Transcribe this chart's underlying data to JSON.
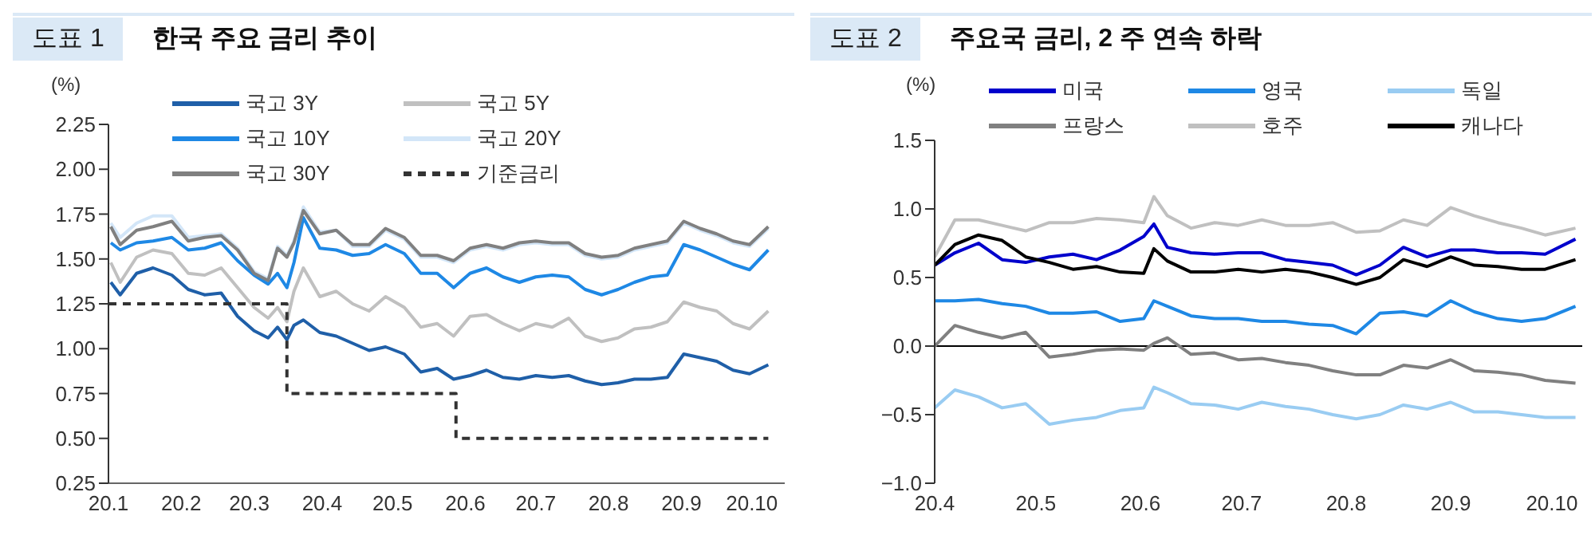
{
  "chart_data": [
    {
      "type": "line",
      "annotations": [
        "도표 1"
      ],
      "title": "한국 주요 금리 추이",
      "ylabel": "(%)",
      "legend": "top",
      "grid": false,
      "marker": "none",
      "x": [
        "--01-02",
        "--01-06",
        "--01-13",
        "--01-20",
        "--01-28",
        "--02-04",
        "--02-11",
        "--02-18",
        "--02-25",
        "--03-03",
        "--03-09",
        "--03-13",
        "--03-17",
        "--03-20",
        "--03-24",
        "--03-31",
        "--04-07",
        "--04-14",
        "--04-21",
        "--04-28",
        "--05-06",
        "--05-13",
        "--05-20",
        "--05-27",
        "--06-03",
        "--06-10",
        "--06-17",
        "--06-24",
        "--07-01",
        "--07-08",
        "--07-15",
        "--07-22",
        "--07-29",
        "--08-05",
        "--08-12",
        "--08-19",
        "--08-26",
        "--09-02",
        "--09-09",
        "--09-16",
        "--09-23",
        "--09-30",
        "--10-08"
      ],
      "xlim": [
        "--01-01",
        "--10-15"
      ],
      "xticks": [
        {
          "value": "--01-01",
          "label": "20.1"
        },
        {
          "value": "--02-01",
          "label": "20.2"
        },
        {
          "value": "--03-01",
          "label": "20.3"
        },
        {
          "value": "--04-01",
          "label": "20.4"
        },
        {
          "value": "--05-01",
          "label": "20.5"
        },
        {
          "value": "--06-01",
          "label": "20.6"
        },
        {
          "value": "--07-01",
          "label": "20.7"
        },
        {
          "value": "--08-01",
          "label": "20.8"
        },
        {
          "value": "--09-01",
          "label": "20.9"
        },
        {
          "value": "--10-01",
          "label": "20.10"
        }
      ],
      "ylim": [
        0.25,
        2.25
      ],
      "yticks": [
        0.25,
        {
          "value": 0.5,
          "label": "0.50"
        },
        0.75,
        {
          "value": 1,
          "label": "1.00"
        },
        1.25,
        {
          "value": 1.5,
          "label": "1.50"
        },
        1.75,
        {
          "value": 2,
          "label": "2.00"
        },
        2.25
      ],
      "series": [
        {
          "name": "국고 3Y",
          "color": "#1f5fa8",
          "values": [
            1.37,
            1.3,
            1.42,
            1.45,
            1.41,
            1.33,
            1.3,
            1.31,
            1.18,
            1.1,
            1.06,
            1.12,
            1.05,
            1.13,
            1.16,
            1.09,
            1.07,
            1.03,
            0.99,
            1.01,
            0.97,
            0.87,
            0.89,
            0.83,
            0.85,
            0.88,
            0.84,
            0.83,
            0.85,
            0.84,
            0.85,
            0.82,
            0.8,
            0.81,
            0.83,
            0.83,
            0.84,
            0.97,
            0.95,
            0.93,
            0.88,
            0.86,
            0.91
          ]
        },
        {
          "name": "국고 5Y",
          "color": "#c0c0c0",
          "values": [
            1.48,
            1.37,
            1.51,
            1.55,
            1.53,
            1.42,
            1.41,
            1.45,
            1.34,
            1.23,
            1.17,
            1.23,
            1.15,
            1.32,
            1.45,
            1.29,
            1.32,
            1.25,
            1.21,
            1.29,
            1.23,
            1.12,
            1.14,
            1.07,
            1.18,
            1.19,
            1.14,
            1.1,
            1.14,
            1.12,
            1.17,
            1.07,
            1.04,
            1.06,
            1.11,
            1.12,
            1.15,
            1.26,
            1.23,
            1.21,
            1.14,
            1.11,
            1.21
          ]
        },
        {
          "name": "국고 10Y",
          "color": "#1e88e5",
          "values": [
            1.59,
            1.55,
            1.59,
            1.6,
            1.62,
            1.55,
            1.56,
            1.59,
            1.49,
            1.41,
            1.36,
            1.42,
            1.34,
            1.48,
            1.73,
            1.56,
            1.55,
            1.52,
            1.53,
            1.58,
            1.53,
            1.42,
            1.42,
            1.34,
            1.42,
            1.45,
            1.4,
            1.37,
            1.4,
            1.41,
            1.4,
            1.33,
            1.3,
            1.33,
            1.37,
            1.4,
            1.41,
            1.58,
            1.55,
            1.51,
            1.47,
            1.44,
            1.55
          ]
        },
        {
          "name": "국고 20Y",
          "color": "#d3e6f8",
          "values": [
            1.7,
            1.62,
            1.7,
            1.74,
            1.74,
            1.62,
            1.63,
            1.64,
            1.56,
            1.43,
            1.39,
            1.57,
            1.52,
            1.6,
            1.79,
            1.65,
            1.66,
            1.57,
            1.57,
            1.66,
            1.61,
            1.51,
            1.51,
            1.48,
            1.55,
            1.57,
            1.55,
            1.58,
            1.59,
            1.58,
            1.58,
            1.52,
            1.5,
            1.51,
            1.55,
            1.57,
            1.59,
            1.7,
            1.66,
            1.63,
            1.59,
            1.57,
            1.67
          ]
        },
        {
          "name": "국고 30Y",
          "color": "#808080",
          "values": [
            1.68,
            1.58,
            1.66,
            1.68,
            1.71,
            1.6,
            1.62,
            1.63,
            1.55,
            1.42,
            1.38,
            1.56,
            1.51,
            1.59,
            1.77,
            1.64,
            1.66,
            1.58,
            1.58,
            1.67,
            1.62,
            1.52,
            1.52,
            1.49,
            1.56,
            1.58,
            1.56,
            1.59,
            1.6,
            1.59,
            1.59,
            1.53,
            1.51,
            1.52,
            1.56,
            1.58,
            1.6,
            1.71,
            1.67,
            1.64,
            1.6,
            1.58,
            1.68
          ]
        },
        {
          "name": "기준금리",
          "type": "step",
          "color": "#333333",
          "line_style": "dashed",
          "x": [
            "--01-01",
            "--03-17",
            "--05-28",
            "--10-08"
          ],
          "values": [
            1.25,
            0.75,
            0.5,
            0.5
          ]
        }
      ]
    },
    {
      "type": "line",
      "annotations": [
        "도표 2"
      ],
      "title": "주요국 금리, 2 주 연속 하락",
      "ylabel": "(%)",
      "legend": "top",
      "grid": false,
      "marker": "none",
      "x": [
        "--04-01",
        "--04-07",
        "--04-14",
        "--04-21",
        "--04-28",
        "--05-05",
        "--05-12",
        "--05-19",
        "--05-26",
        "--06-02",
        "--06-05",
        "--06-09",
        "--06-16",
        "--06-23",
        "--06-30",
        "--07-07",
        "--07-14",
        "--07-21",
        "--07-28",
        "--08-04",
        "--08-11",
        "--08-18",
        "--08-25",
        "--09-01",
        "--09-08",
        "--09-15",
        "--09-22",
        "--09-29",
        "--10-08"
      ],
      "xlim": [
        "--04-01",
        "--10-10"
      ],
      "xticks": [
        {
          "value": "--04-01",
          "label": "20.4"
        },
        {
          "value": "--05-01",
          "label": "20.5"
        },
        {
          "value": "--06-01",
          "label": "20.6"
        },
        {
          "value": "--07-01",
          "label": "20.7"
        },
        {
          "value": "--08-01",
          "label": "20.8"
        },
        {
          "value": "--09-01",
          "label": "20.9"
        },
        {
          "value": "--10-01",
          "label": "20.10"
        }
      ],
      "ylim": [
        -1,
        1.5
      ],
      "yticks": [
        {
          "value": -1,
          "label": "−1.0"
        },
        {
          "value": -0.5,
          "label": "−0.5"
        },
        {
          "value": 0,
          "label": "0.0"
        },
        0.5,
        {
          "value": 1,
          "label": "1.0"
        },
        1.5
      ],
      "ref_lines": [
        {
          "axis": "y",
          "value": 0,
          "color": "#000000"
        }
      ],
      "series": [
        {
          "name": "미국",
          "color": "#0000cc",
          "values": [
            0.59,
            0.68,
            0.75,
            0.63,
            0.61,
            0.65,
            0.67,
            0.63,
            0.7,
            0.8,
            0.89,
            0.72,
            0.68,
            0.67,
            0.68,
            0.68,
            0.63,
            0.61,
            0.59,
            0.52,
            0.59,
            0.72,
            0.65,
            0.7,
            0.7,
            0.68,
            0.68,
            0.67,
            0.78
          ]
        },
        {
          "name": "영국",
          "color": "#1e88e5",
          "values": [
            0.33,
            0.33,
            0.34,
            0.31,
            0.29,
            0.24,
            0.24,
            0.25,
            0.18,
            0.2,
            0.33,
            0.29,
            0.22,
            0.2,
            0.2,
            0.18,
            0.18,
            0.16,
            0.15,
            0.09,
            0.24,
            0.25,
            0.22,
            0.33,
            0.25,
            0.2,
            0.18,
            0.2,
            0.29
          ]
        },
        {
          "name": "독일",
          "color": "#99ccf2",
          "values": [
            -0.45,
            -0.32,
            -0.37,
            -0.45,
            -0.42,
            -0.57,
            -0.54,
            -0.52,
            -0.47,
            -0.45,
            -0.3,
            -0.34,
            -0.42,
            -0.43,
            -0.46,
            -0.41,
            -0.44,
            -0.46,
            -0.5,
            -0.53,
            -0.5,
            -0.43,
            -0.46,
            -0.41,
            -0.48,
            -0.48,
            -0.5,
            -0.52,
            -0.52
          ]
        },
        {
          "name": "프랑스",
          "color": "#808080",
          "values": [
            0.0,
            0.15,
            0.1,
            0.06,
            0.1,
            -0.08,
            -0.06,
            -0.03,
            -0.02,
            -0.03,
            0.02,
            0.06,
            -0.06,
            -0.05,
            -0.1,
            -0.09,
            -0.12,
            -0.14,
            -0.18,
            -0.21,
            -0.21,
            -0.14,
            -0.16,
            -0.1,
            -0.18,
            -0.19,
            -0.21,
            -0.25,
            -0.27
          ]
        },
        {
          "name": "호주",
          "color": "#c0c0c0",
          "values": [
            0.65,
            0.92,
            0.92,
            0.88,
            0.84,
            0.9,
            0.9,
            0.93,
            0.92,
            0.9,
            1.09,
            0.95,
            0.86,
            0.9,
            0.88,
            0.92,
            0.88,
            0.88,
            0.9,
            0.83,
            0.84,
            0.92,
            0.88,
            1.01,
            0.95,
            0.9,
            0.86,
            0.81,
            0.86
          ]
        },
        {
          "name": "캐나다",
          "color": "#000000",
          "values": [
            0.59,
            0.74,
            0.81,
            0.77,
            0.65,
            0.61,
            0.56,
            0.58,
            0.54,
            0.53,
            0.71,
            0.62,
            0.54,
            0.54,
            0.56,
            0.54,
            0.56,
            0.54,
            0.5,
            0.45,
            0.5,
            0.63,
            0.58,
            0.65,
            0.59,
            0.58,
            0.56,
            0.56,
            0.63
          ]
        }
      ]
    }
  ]
}
